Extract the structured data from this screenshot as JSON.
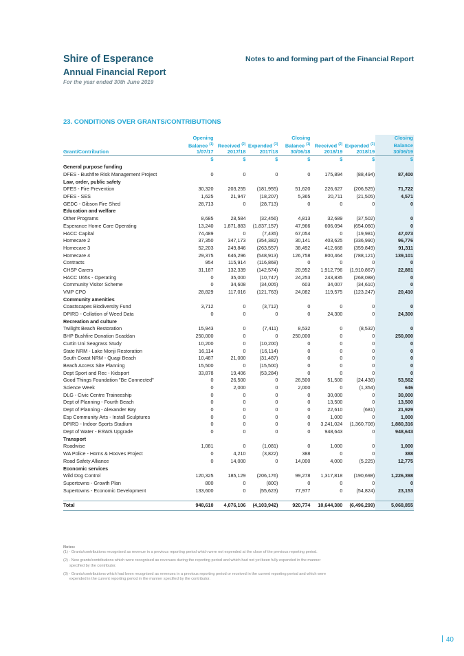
{
  "header": {
    "org": "Shire of Esperance",
    "report": "Annual Financial Report",
    "period": "For the year ended 30th June 2019",
    "notes_title": "Notes to and forming part of the Financial Report"
  },
  "section_title": "23. CONDITIONS OVER GRANTS/CONTRIBUTIONS",
  "columns": [
    {
      "l1": "",
      "l2": "",
      "sup": "",
      "l3": "Grant/Contribution"
    },
    {
      "l1": "Opening",
      "l2": "Balance",
      "sup": "(1)",
      "l3": "1/07/17"
    },
    {
      "l1": "",
      "l2": "Received",
      "sup": "(2)",
      "l3": "2017/18"
    },
    {
      "l1": "",
      "l2": "Expended",
      "sup": "(3)",
      "l3": "2017/18"
    },
    {
      "l1": "Closing",
      "l2": "Balance",
      "sup": "(1)",
      "l3": "30/06/18"
    },
    {
      "l1": "",
      "l2": "Received",
      "sup": "(2)",
      "l3": "2018/19"
    },
    {
      "l1": "",
      "l2": "Expended",
      "sup": "(3)",
      "l3": "2018/19"
    },
    {
      "l1": "Closing",
      "l2": "Balance",
      "sup": "",
      "l3": "30/06/19"
    }
  ],
  "unit": "$",
  "rows": [
    {
      "type": "cat",
      "name": "General purpose funding"
    },
    {
      "name": "DFES - Bushfire Risk Management Project",
      "v": [
        "0",
        "0",
        "0",
        "0",
        "175,894",
        "(88,494)",
        "87,400"
      ]
    },
    {
      "type": "cat",
      "name": "Law, order, public safety"
    },
    {
      "name": "DFES - Fire Prevention",
      "v": [
        "30,320",
        "203,255",
        "(181,955)",
        "51,620",
        "226,627",
        "(206,525)",
        "71,722"
      ]
    },
    {
      "name": "DFES - SES",
      "v": [
        "1,625",
        "21,947",
        "(18,207)",
        "5,365",
        "20,711",
        "(21,505)",
        "4,571"
      ]
    },
    {
      "name": "GEDC - Gibson Fire Shed",
      "v": [
        "28,713",
        "0",
        "(28,713)",
        "0",
        "0",
        "0",
        "0"
      ]
    },
    {
      "type": "cat",
      "name": "Education and welfare"
    },
    {
      "name": "Other Programs",
      "v": [
        "8,685",
        "28,584",
        "(32,456)",
        "4,813",
        "32,689",
        "(37,502)",
        "0"
      ]
    },
    {
      "name": "Esperance Home Care Operating",
      "v": [
        "13,240",
        "1,871,883",
        "(1,837,157)",
        "47,966",
        "606,094",
        "(654,060)",
        "0"
      ]
    },
    {
      "name": "HACC Capital",
      "v": [
        "74,489",
        "0",
        "(7,435)",
        "67,054",
        "0",
        "(19,981)",
        "47,073"
      ]
    },
    {
      "name": "Homecare 2",
      "v": [
        "37,350",
        "347,173",
        "(354,382)",
        "30,141",
        "403,625",
        "(336,990)",
        "96,776"
      ]
    },
    {
      "name": "Homecare 3",
      "v": [
        "52,203",
        "249,846",
        "(263,557)",
        "38,492",
        "412,668",
        "(359,849)",
        "91,311"
      ]
    },
    {
      "name": "Homecare 4",
      "v": [
        "29,375",
        "646,296",
        "(548,913)",
        "126,758",
        "800,464",
        "(788,121)",
        "139,101"
      ]
    },
    {
      "name": "Contracts",
      "v": [
        "954",
        "115,914",
        "(116,868)",
        "0",
        "0",
        "0",
        "0"
      ]
    },
    {
      "name": "CHSP Carers",
      "v": [
        "31,187",
        "132,339",
        "(142,574)",
        "20,952",
        "1,912,796",
        "(1,910,867)",
        "22,881"
      ]
    },
    {
      "name": "HACC U65s - Operating",
      "v": [
        "0",
        "35,000",
        "(10,747)",
        "24,253",
        "243,835",
        "(268,088)",
        "0"
      ]
    },
    {
      "name": "Community Visitor Scheme",
      "v": [
        "0",
        "34,608",
        "(34,005)",
        "603",
        "34,007",
        "(34,610)",
        "0"
      ]
    },
    {
      "name": "VMP CPO",
      "v": [
        "28,829",
        "117,016",
        "(121,763)",
        "24,082",
        "119,575",
        "(123,247)",
        "20,410"
      ]
    },
    {
      "type": "cat",
      "name": "Community amenities"
    },
    {
      "name": "Coastscapes Biodiversity Fund",
      "v": [
        "3,712",
        "0",
        "(3,712)",
        "0",
        "0",
        "0",
        "0"
      ]
    },
    {
      "name": "DPIRD - Collation of Weed Data",
      "v": [
        "0",
        "0",
        "0",
        "0",
        "24,300",
        "0",
        "24,300"
      ]
    },
    {
      "type": "cat",
      "name": "Recreation and culture"
    },
    {
      "name": "Twilight Beach Restoration",
      "v": [
        "15,943",
        "0",
        "(7,411)",
        "8,532",
        "0",
        "(8,532)",
        "0"
      ]
    },
    {
      "name": "BHP Bushfire Donation Scaddan",
      "v": [
        "250,000",
        "0",
        "0",
        "250,000",
        "0",
        "0",
        "250,000"
      ]
    },
    {
      "name": "Curtin Uni Seagrass Study",
      "v": [
        "10,200",
        "0",
        "(10,200)",
        "0",
        "0",
        "0",
        "0"
      ]
    },
    {
      "name": "State NRM - Lake Monji Restoration",
      "v": [
        "16,114",
        "0",
        "(16,114)",
        "0",
        "0",
        "0",
        "0"
      ]
    },
    {
      "name": "South Coast NRM - Quagi Beach",
      "v": [
        "10,487",
        "21,000",
        "(31,487)",
        "0",
        "0",
        "0",
        "0"
      ]
    },
    {
      "name": "Beach Access Site Planning",
      "v": [
        "15,500",
        "0",
        "(15,500)",
        "0",
        "0",
        "0",
        "0"
      ]
    },
    {
      "name": "Dept Sport and Rec - Kidsport",
      "v": [
        "33,878",
        "19,406",
        "(53,284)",
        "0",
        "0",
        "0",
        "0"
      ]
    },
    {
      "name": "Good Things Foundation \"Be Connected\"",
      "v": [
        "0",
        "26,500",
        "0",
        "26,500",
        "51,500",
        "(24,438)",
        "53,562"
      ]
    },
    {
      "name": "Science Week",
      "v": [
        "0",
        "2,000",
        "0",
        "2,000",
        "0",
        "(1,354)",
        "646"
      ]
    },
    {
      "name": "DLG - Civic Centre Traineeship",
      "v": [
        "0",
        "0",
        "0",
        "0",
        "30,000",
        "0",
        "30,000"
      ]
    },
    {
      "name": "Dept of Planning - Fourth Beach",
      "v": [
        "0",
        "0",
        "0",
        "0",
        "13,500",
        "0",
        "13,500"
      ]
    },
    {
      "name": "Dept of Planning - Alexander Bay",
      "v": [
        "0",
        "0",
        "0",
        "0",
        "22,610",
        "(681)",
        "21,929"
      ]
    },
    {
      "name": "Esp Community Arts - Install Sculptures",
      "v": [
        "0",
        "0",
        "0",
        "0",
        "1,000",
        "0",
        "1,000"
      ]
    },
    {
      "name": "DPIRD - Indoor Sports Stadium",
      "v": [
        "0",
        "0",
        "0",
        "0",
        "3,241,024",
        "(1,360,708)",
        "1,880,316"
      ]
    },
    {
      "name": "Dept of Water - ESWS Upgrade",
      "v": [
        "0",
        "0",
        "0",
        "0",
        "948,643",
        "0",
        "948,643"
      ]
    },
    {
      "type": "cat",
      "name": "Transport"
    },
    {
      "name": "Roadwise",
      "v": [
        "1,081",
        "0",
        "(1,081)",
        "0",
        "1,000",
        "0",
        "1,000"
      ]
    },
    {
      "name": "WA Police - Horns & Hooves Project",
      "v": [
        "0",
        "4,210",
        "(3,822)",
        "388",
        "0",
        "0",
        "388"
      ]
    },
    {
      "name": "Road Safety Alliance",
      "v": [
        "0",
        "14,000",
        "0",
        "14,000",
        "4,000",
        "(5,225)",
        "12,775"
      ]
    },
    {
      "type": "cat",
      "name": "Economic services"
    },
    {
      "name": "Wild Dog Control",
      "v": [
        "120,325",
        "185,129",
        "(206,176)",
        "99,278",
        "1,317,818",
        "(190,698)",
        "1,226,398"
      ]
    },
    {
      "name": "Supertowns - Growth Plan",
      "v": [
        "800",
        "0",
        "(800)",
        "0",
        "0",
        "0",
        "0"
      ]
    },
    {
      "name": "Supertowns - Economic Development",
      "v": [
        "133,600",
        "0",
        "(55,623)",
        "77,977",
        "0",
        "(54,824)",
        "23,153"
      ]
    },
    {
      "type": "spacer"
    },
    {
      "type": "total",
      "name": "Total",
      "v": [
        "948,610",
        "4,076,106",
        "(4,103,942)",
        "920,774",
        "10,644,380",
        "(6,496,299)",
        "5,068,855"
      ]
    }
  ],
  "notes": {
    "heading": "Notes:",
    "items": [
      {
        "first": "(1) - Grants/contributions recognised as revenue in a previous reporting period which were not expended at the close of the previous reporting period.",
        "cont": ""
      },
      {
        "first": "(2) - New grants/contributions which were recognised as revenues during the reporting period and which had not yet been fully expended in the manner",
        "cont": "specified by the contributor."
      },
      {
        "first": "(3) - Grants/contributions which had been recognised as revenues in a previous reporting period or received in the current reporting period and which were",
        "cont": "expended in the current reporting period in the manner specified by the contributor."
      }
    ]
  },
  "page_number": "40"
}
